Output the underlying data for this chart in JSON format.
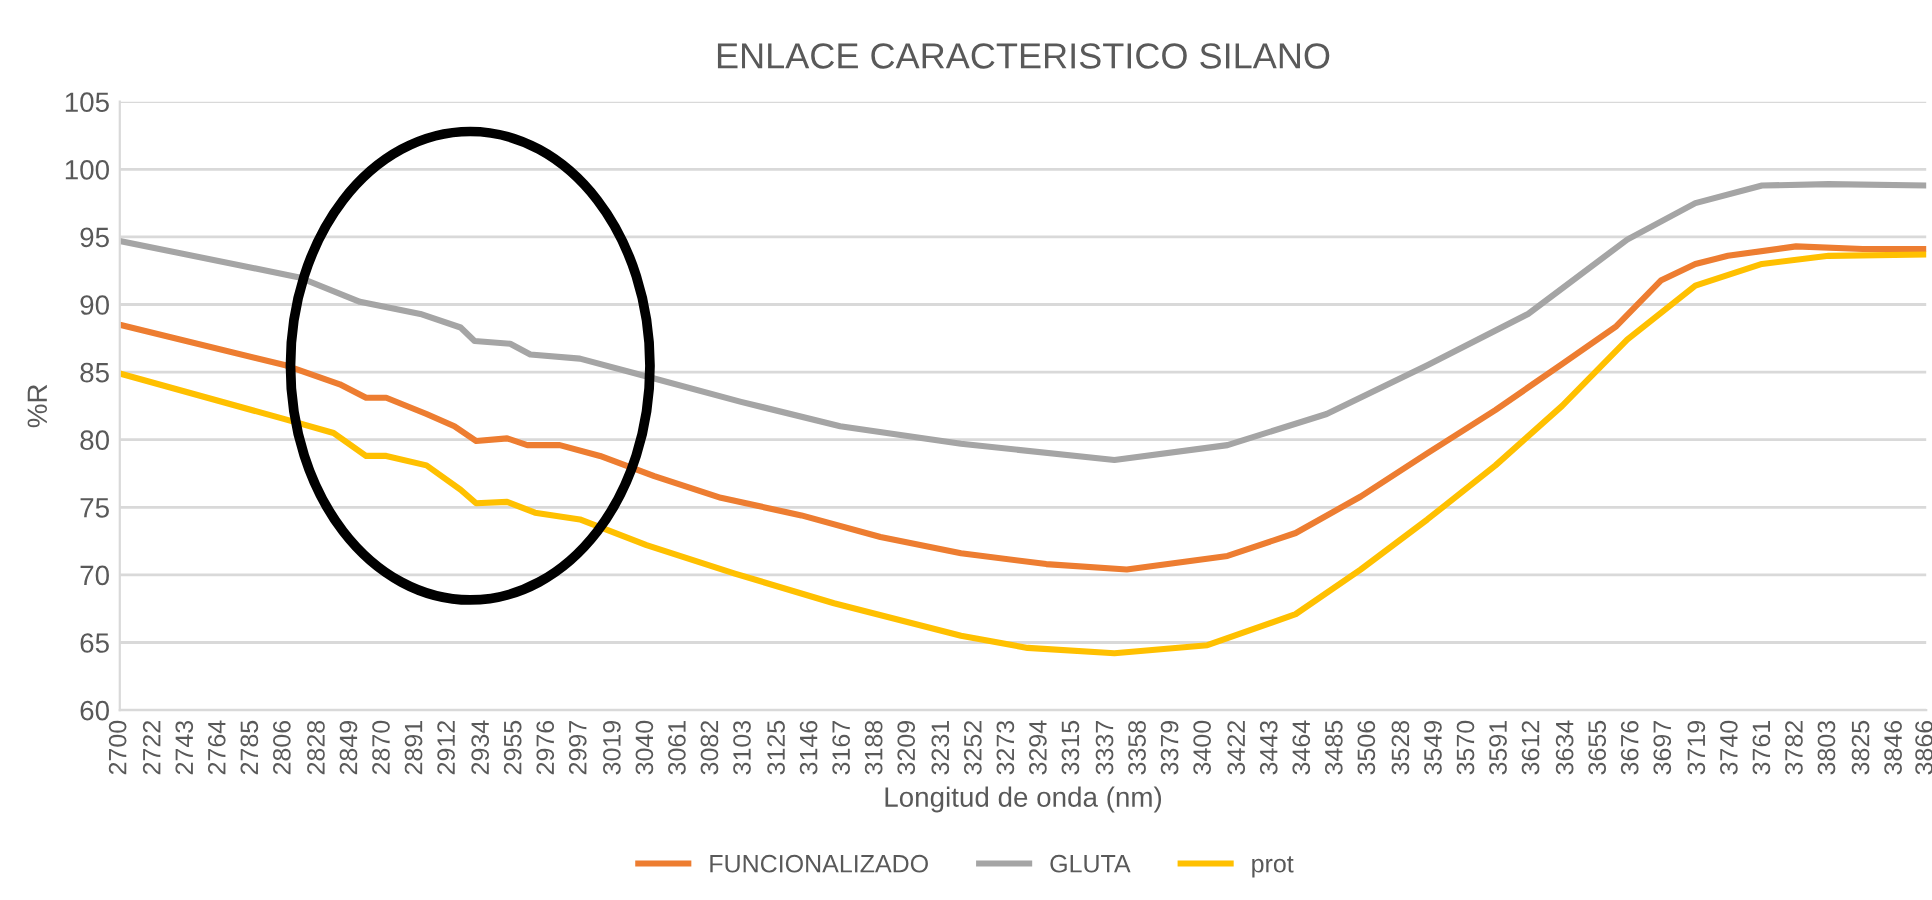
{
  "chart_data": {
    "type": "line",
    "title": "ENLACE CARACTERISTICO SILANO",
    "xlabel": "Longitud de onda (nm)",
    "ylabel": "%R",
    "xlim": [
      2700,
      3866
    ],
    "xticks": [
      2700,
      2722,
      2743,
      2764,
      2785,
      2806,
      2828,
      2849,
      2870,
      2891,
      2912,
      2934,
      2955,
      2976,
      2997,
      3019,
      3040,
      3061,
      3082,
      3103,
      3125,
      3146,
      3167,
      3188,
      3209,
      3231,
      3252,
      3273,
      3294,
      3315,
      3337,
      3358,
      3379,
      3400,
      3422,
      3443,
      3464,
      3485,
      3506,
      3528,
      3549,
      3570,
      3591,
      3612,
      3634,
      3655,
      3676,
      3697,
      3719,
      3740,
      3761,
      3782,
      3803,
      3825,
      3846,
      3866
    ],
    "ylim": [
      60,
      105
    ],
    "yticks": [
      60,
      65,
      70,
      75,
      80,
      85,
      90,
      95,
      100,
      105
    ],
    "grid": "y",
    "legend": "bottom",
    "marker": "none",
    "line_style": "solid",
    "series": [
      {
        "name": "FUNCIONALIZADO",
        "color": "#ed7d31",
        "x": [
          2700,
          2807,
          2842,
          2859,
          2872,
          2898,
          2916,
          2930,
          2950,
          2963,
          2984,
          3010,
          3045,
          3088,
          3140,
          3191,
          3243,
          3298,
          3350,
          3415,
          3459,
          3501,
          3544,
          3588,
          3631,
          3666,
          3695,
          3717,
          3738,
          3782,
          3825,
          3866
        ],
        "values": [
          88.5,
          85.5,
          84.1,
          83.1,
          83.1,
          81.9,
          81.0,
          79.9,
          80.1,
          79.6,
          79.6,
          78.8,
          77.3,
          75.7,
          74.4,
          72.8,
          71.6,
          70.8,
          70.4,
          71.4,
          73.1,
          75.8,
          79.0,
          82.2,
          85.6,
          88.4,
          91.8,
          93.0,
          93.6,
          94.3,
          94.1,
          94.1
        ]
      },
      {
        "name": "GLUTA",
        "color": "#a5a5a5",
        "x": [
          2700,
          2816,
          2855,
          2894,
          2920,
          2929,
          2952,
          2965,
          2997,
          3036,
          3101,
          3165,
          3243,
          3342,
          3415,
          3479,
          3544,
          3609,
          3673,
          3717,
          3760,
          3803,
          3866
        ],
        "values": [
          94.7,
          92.0,
          90.2,
          89.3,
          88.3,
          87.3,
          87.1,
          86.3,
          86.0,
          84.8,
          82.8,
          81.0,
          79.7,
          78.5,
          79.6,
          81.9,
          85.5,
          89.3,
          94.8,
          97.5,
          98.8,
          98.9,
          98.8
        ]
      },
      {
        "name": "prot",
        "color": "#ffc000",
        "x": [
          2700,
          2807,
          2838,
          2859,
          2872,
          2898,
          2920,
          2930,
          2950,
          2968,
          2997,
          3040,
          3097,
          3161,
          3243,
          3286,
          3342,
          3402,
          3459,
          3501,
          3544,
          3588,
          3631,
          3673,
          3717,
          3760,
          3803,
          3866
        ],
        "values": [
          84.9,
          81.5,
          80.5,
          78.8,
          78.8,
          78.1,
          76.3,
          75.3,
          75.4,
          74.6,
          74.1,
          72.2,
          70.1,
          67.9,
          65.5,
          64.6,
          64.2,
          64.8,
          67.1,
          70.4,
          74.1,
          78.1,
          82.5,
          87.4,
          91.4,
          93.0,
          93.6,
          93.7
        ]
      }
    ]
  }
}
